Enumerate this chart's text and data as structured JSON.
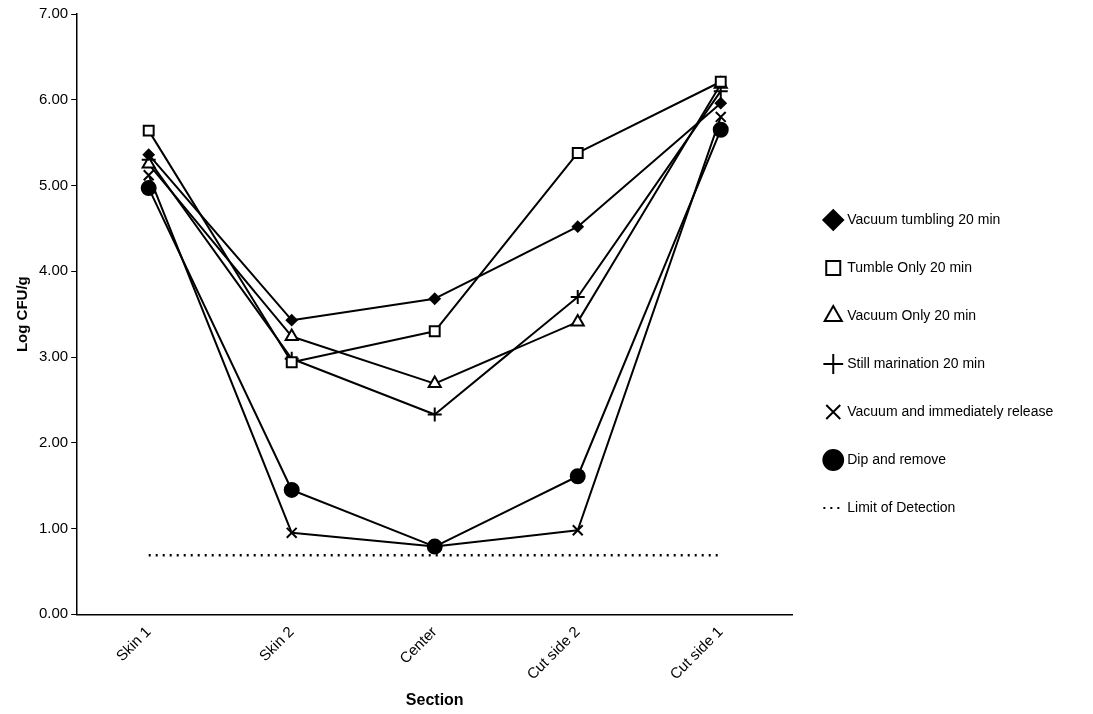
{
  "chart_data": {
    "type": "line",
    "xlabel": "Section",
    "ylabel": "Log CFU/g",
    "categories": [
      "Skin 1",
      "Skin 2",
      "Center",
      "Cut side 2",
      "Cut side 1"
    ],
    "ylim": [
      0,
      7
    ],
    "yticks": [
      {
        "value": 0,
        "label": "0.00"
      },
      {
        "value": 1,
        "label": "1.00"
      },
      {
        "value": 2,
        "label": "2.00"
      },
      {
        "value": 3,
        "label": "3.00"
      },
      {
        "value": 4,
        "label": "4.00"
      },
      {
        "value": 5,
        "label": "5.00"
      },
      {
        "value": 6,
        "label": "6.00"
      },
      {
        "value": 7,
        "label": "7.00"
      }
    ],
    "grid": false,
    "legend": "right",
    "series": [
      {
        "name": "Vacuum tumbling 20 min",
        "color": "#000000",
        "marker": "diamond",
        "values": [
          5.36,
          3.43,
          3.68,
          4.52,
          5.96
        ]
      },
      {
        "name": "Tumble Only 20 min",
        "color": "#000000",
        "marker": "square",
        "values": [
          5.64,
          2.94,
          3.3,
          5.38,
          6.21
        ]
      },
      {
        "name": "Vacuum Only 20 min",
        "color": "#000000",
        "marker": "triangle",
        "values": [
          5.25,
          3.24,
          2.69,
          3.41,
          6.18
        ]
      },
      {
        "name": "Still marination 20 min",
        "color": "#000000",
        "marker": "cross",
        "values": [
          5.3,
          2.98,
          2.33,
          3.7,
          6.1
        ]
      },
      {
        "name": "Vacuum and immediately release",
        "color": "#000000",
        "marker": "x",
        "values": [
          5.12,
          0.95,
          0.79,
          0.98,
          5.8
        ]
      },
      {
        "name": "Dip and remove",
        "color": "#000000",
        "marker": "circle",
        "values": [
          4.97,
          1.45,
          0.79,
          1.61,
          5.65
        ]
      }
    ],
    "ref_lines": [
      {
        "axis": "y",
        "value": 0.69,
        "label": "Limit of Detection",
        "color": "#000000",
        "line_style": "dotted"
      }
    ]
  }
}
